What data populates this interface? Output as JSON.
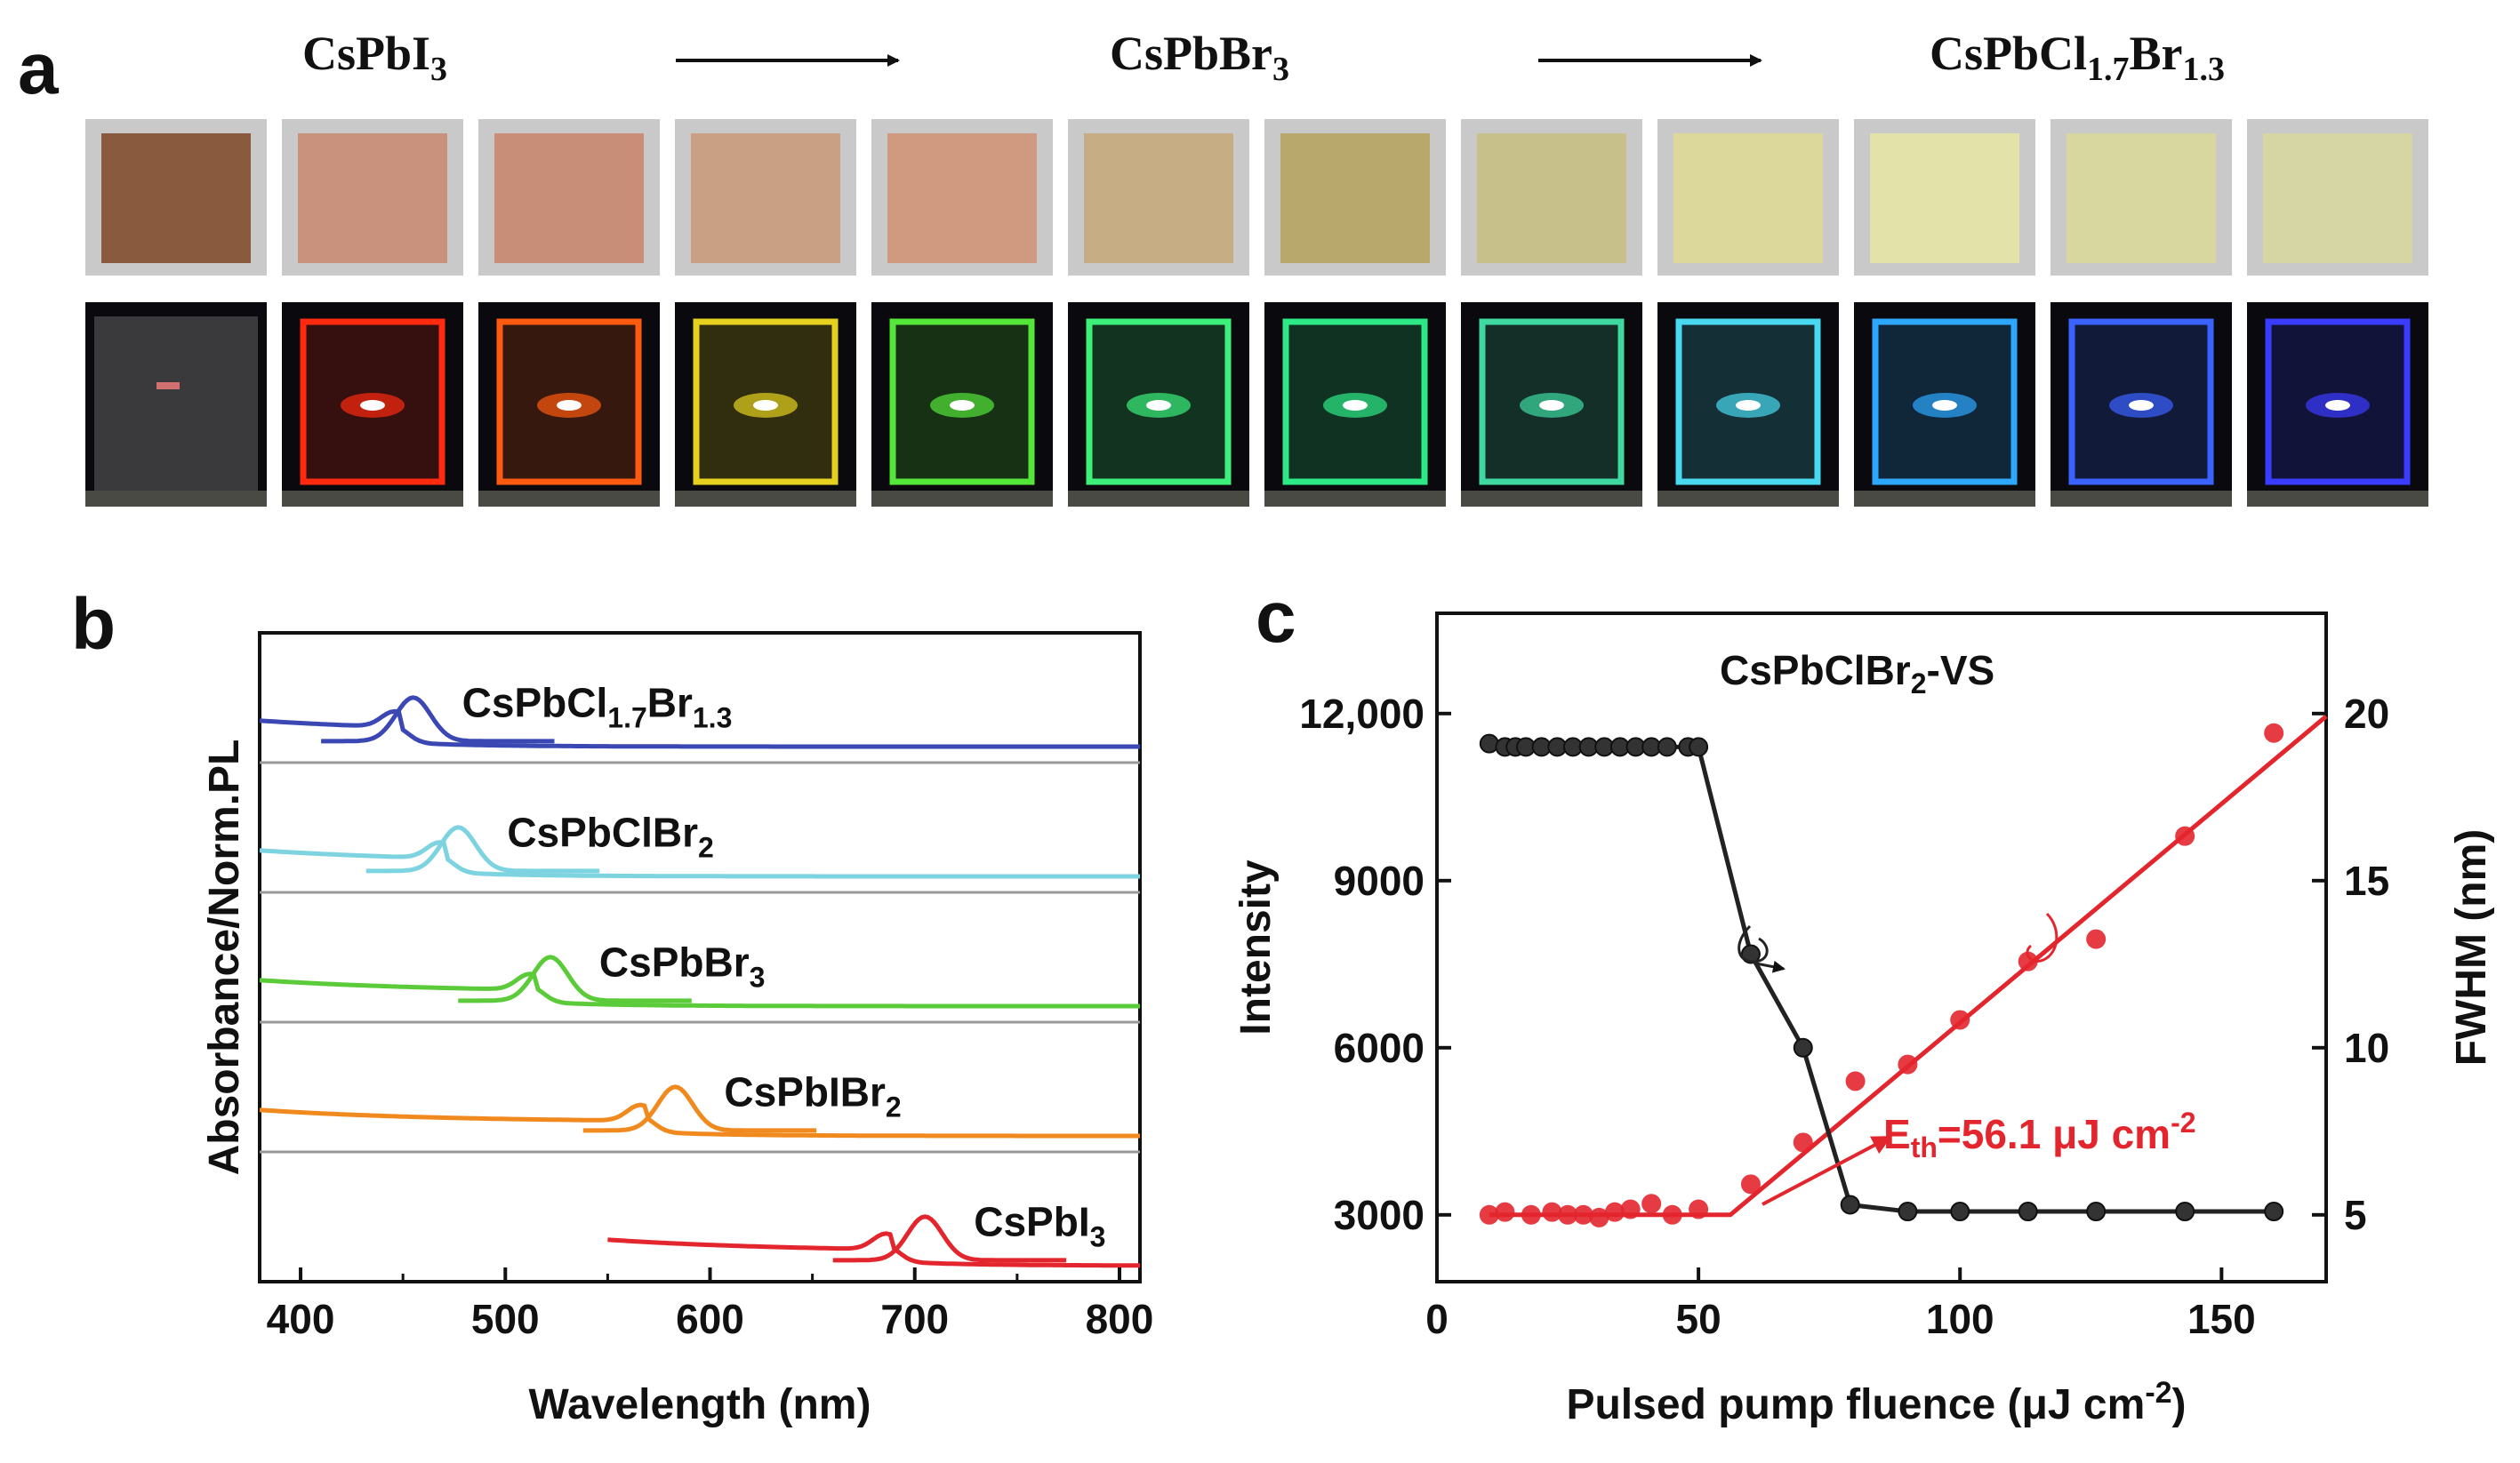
{
  "panel_a": {
    "letter": "a",
    "label_left": {
      "base": "CsPbI",
      "sub": "3"
    },
    "label_middle": {
      "base": "CsPbBr",
      "sub": "3"
    },
    "label_right": {
      "parts": [
        {
          "t": "CsPbCl",
          "sub": false
        },
        {
          "t": "1.7",
          "sub": true
        },
        {
          "t": "Br",
          "sub": false
        },
        {
          "t": "1.3",
          "sub": true
        }
      ]
    },
    "film_colors": [
      "#8a5a3e",
      "#c9927c",
      "#c98e78",
      "#caa085",
      "#d09a80",
      "#c7ad84",
      "#b8a86c",
      "#c8c08a",
      "#dcd79a",
      "#e3e2a8",
      "#d8d7a0",
      "#d6d5a4"
    ],
    "glow_colors": [
      "#d07070",
      "#ff2a10",
      "#ff5a10",
      "#e6d21e",
      "#55e63a",
      "#3cf07a",
      "#2eea86",
      "#3ed8a0",
      "#48d8f0",
      "#2ea8ff",
      "#3a62ff",
      "#3a3cff"
    ]
  },
  "chart_data": [
    {
      "panel": "b",
      "type": "line",
      "xlabel": "Wavelength (nm)",
      "ylabel": "Absorbance/Norm.PL",
      "xlim": [
        380,
        810
      ],
      "xticks": [
        400,
        500,
        600,
        700,
        800
      ],
      "series": [
        {
          "name": "CsPbCl1.7Br1.3",
          "label_parts": [
            {
              "t": "CsPbCl",
              "sub": false
            },
            {
              "t": "1.7",
              "sub": true
            },
            {
              "t": "Br",
              "sub": false
            },
            {
              "t": "1.3",
              "sub": true
            }
          ],
          "color": "#3b48b4",
          "pl_peak_nm": 455,
          "absorption_onset_nm": 450
        },
        {
          "name": "CsPbClBr2",
          "label_parts": [
            {
              "t": "CsPbClBr",
              "sub": false
            },
            {
              "t": "2",
              "sub": true
            }
          ],
          "color": "#7dd3e0",
          "pl_peak_nm": 477,
          "absorption_onset_nm": 472
        },
        {
          "name": "CsPbBr3",
          "label_parts": [
            {
              "t": "CsPbBr",
              "sub": false
            },
            {
              "t": "3",
              "sub": true
            }
          ],
          "color": "#5ccb3a",
          "pl_peak_nm": 522,
          "absorption_onset_nm": 516
        },
        {
          "name": "CsPbIBr2",
          "label_parts": [
            {
              "t": "CsPbIBr",
              "sub": false
            },
            {
              "t": "2",
              "sub": true
            }
          ],
          "color": "#f08a1e",
          "pl_peak_nm": 583,
          "absorption_onset_nm": 570
        },
        {
          "name": "CsPbI3",
          "label_parts": [
            {
              "t": "CsPbI",
              "sub": false
            },
            {
              "t": "3",
              "sub": true
            }
          ],
          "color": "#e3262e",
          "pl_peak_nm": 705,
          "absorption_onset_nm": 690
        }
      ]
    },
    {
      "panel": "c",
      "type": "scatter",
      "title": "CsPbClBr",
      "title_sub": "2",
      "title_suffix": "-VS",
      "xlabel": "Pulsed pump fluence (μJ cm",
      "xlabel_sup": "-2",
      "xlabel_end": ")",
      "ylabel_left": "Intensity",
      "ylabel_right": "FWHM (nm)",
      "xlim": [
        0,
        170
      ],
      "xticks": [
        0,
        50,
        100,
        150
      ],
      "ylim_left": [
        1800,
        13800
      ],
      "yticks_left": [
        3000,
        6000,
        9000,
        12000
      ],
      "yticks_left_labels": [
        "3000",
        "6000",
        "9000",
        "12,000"
      ],
      "ylim_right": [
        3.0,
        23.0
      ],
      "yticks_right": [
        5,
        10,
        15,
        20
      ],
      "threshold_label": "E",
      "threshold_sub": "th",
      "threshold_value": "=56.1  μJ cm",
      "threshold_sup": "-2",
      "threshold": 56.1,
      "series": [
        {
          "name": "Intensity",
          "axis": "left",
          "color": "#e3262e",
          "x": [
            10,
            13,
            18,
            22,
            25,
            28,
            31,
            34,
            37,
            41,
            45,
            50,
            60,
            70,
            80,
            90,
            100,
            113,
            126,
            143,
            160
          ],
          "y": [
            3000,
            3050,
            3000,
            3050,
            3000,
            3000,
            2950,
            3050,
            3100,
            3200,
            3000,
            3100,
            3550,
            4300,
            5400,
            5700,
            6500,
            7550,
            7950,
            9800,
            11650
          ],
          "fit": {
            "flat_y": 3000,
            "x_break": 56.1,
            "x_end": 170,
            "y_end": 11950
          }
        },
        {
          "name": "FWHM",
          "axis": "right",
          "color": "#222222",
          "x": [
            10,
            13,
            15,
            17,
            20,
            23,
            26,
            29,
            32,
            35,
            38,
            41,
            44,
            48,
            50,
            60,
            70,
            79,
            90,
            100,
            113,
            126,
            143,
            160
          ],
          "y": [
            19.1,
            19.0,
            19.0,
            19.0,
            19.0,
            19.0,
            19.0,
            19.0,
            19.0,
            19.0,
            19.0,
            19.0,
            19.0,
            19.0,
            19.0,
            12.8,
            10.0,
            5.3,
            5.1,
            5.1,
            5.1,
            5.1,
            5.1,
            5.1
          ]
        }
      ]
    }
  ]
}
